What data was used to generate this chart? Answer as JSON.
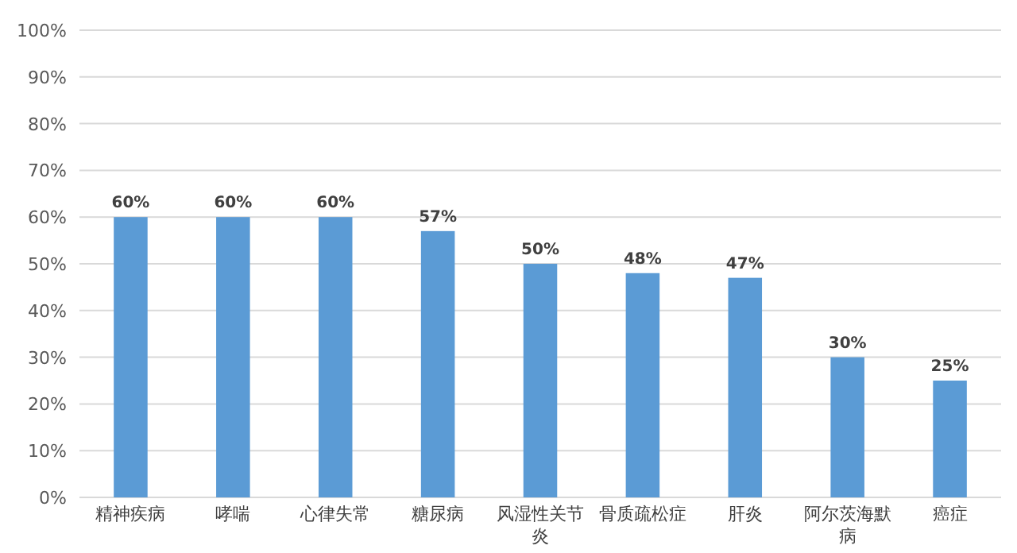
{
  "chart_data": {
    "type": "bar",
    "categories": [
      "精神疾病",
      "哮喘",
      "心律失常",
      "糖尿病",
      "风湿性关节炎",
      "骨质疏松症",
      "肝炎",
      "阿尔茨海默病",
      "癌症"
    ],
    "values": [
      60,
      60,
      60,
      57,
      50,
      48,
      47,
      30,
      25
    ],
    "value_labels": [
      "60%",
      "60%",
      "60%",
      "57%",
      "50%",
      "48%",
      "47%",
      "30%",
      "25%"
    ],
    "color": "#5b9bd5",
    "ylim": [
      0,
      100
    ],
    "yticks": [
      {
        "value": 0,
        "label": "0%"
      },
      {
        "value": 10,
        "label": "10%"
      },
      {
        "value": 20,
        "label": "20%"
      },
      {
        "value": 30,
        "label": "30%"
      },
      {
        "value": 40,
        "label": "40%"
      },
      {
        "value": 50,
        "label": "50%"
      },
      {
        "value": 60,
        "label": "60%"
      },
      {
        "value": 70,
        "label": "70%"
      },
      {
        "value": 80,
        "label": "80%"
      },
      {
        "value": 90,
        "label": "90%"
      },
      {
        "value": 100,
        "label": "100%"
      }
    ],
    "grid": "y"
  }
}
